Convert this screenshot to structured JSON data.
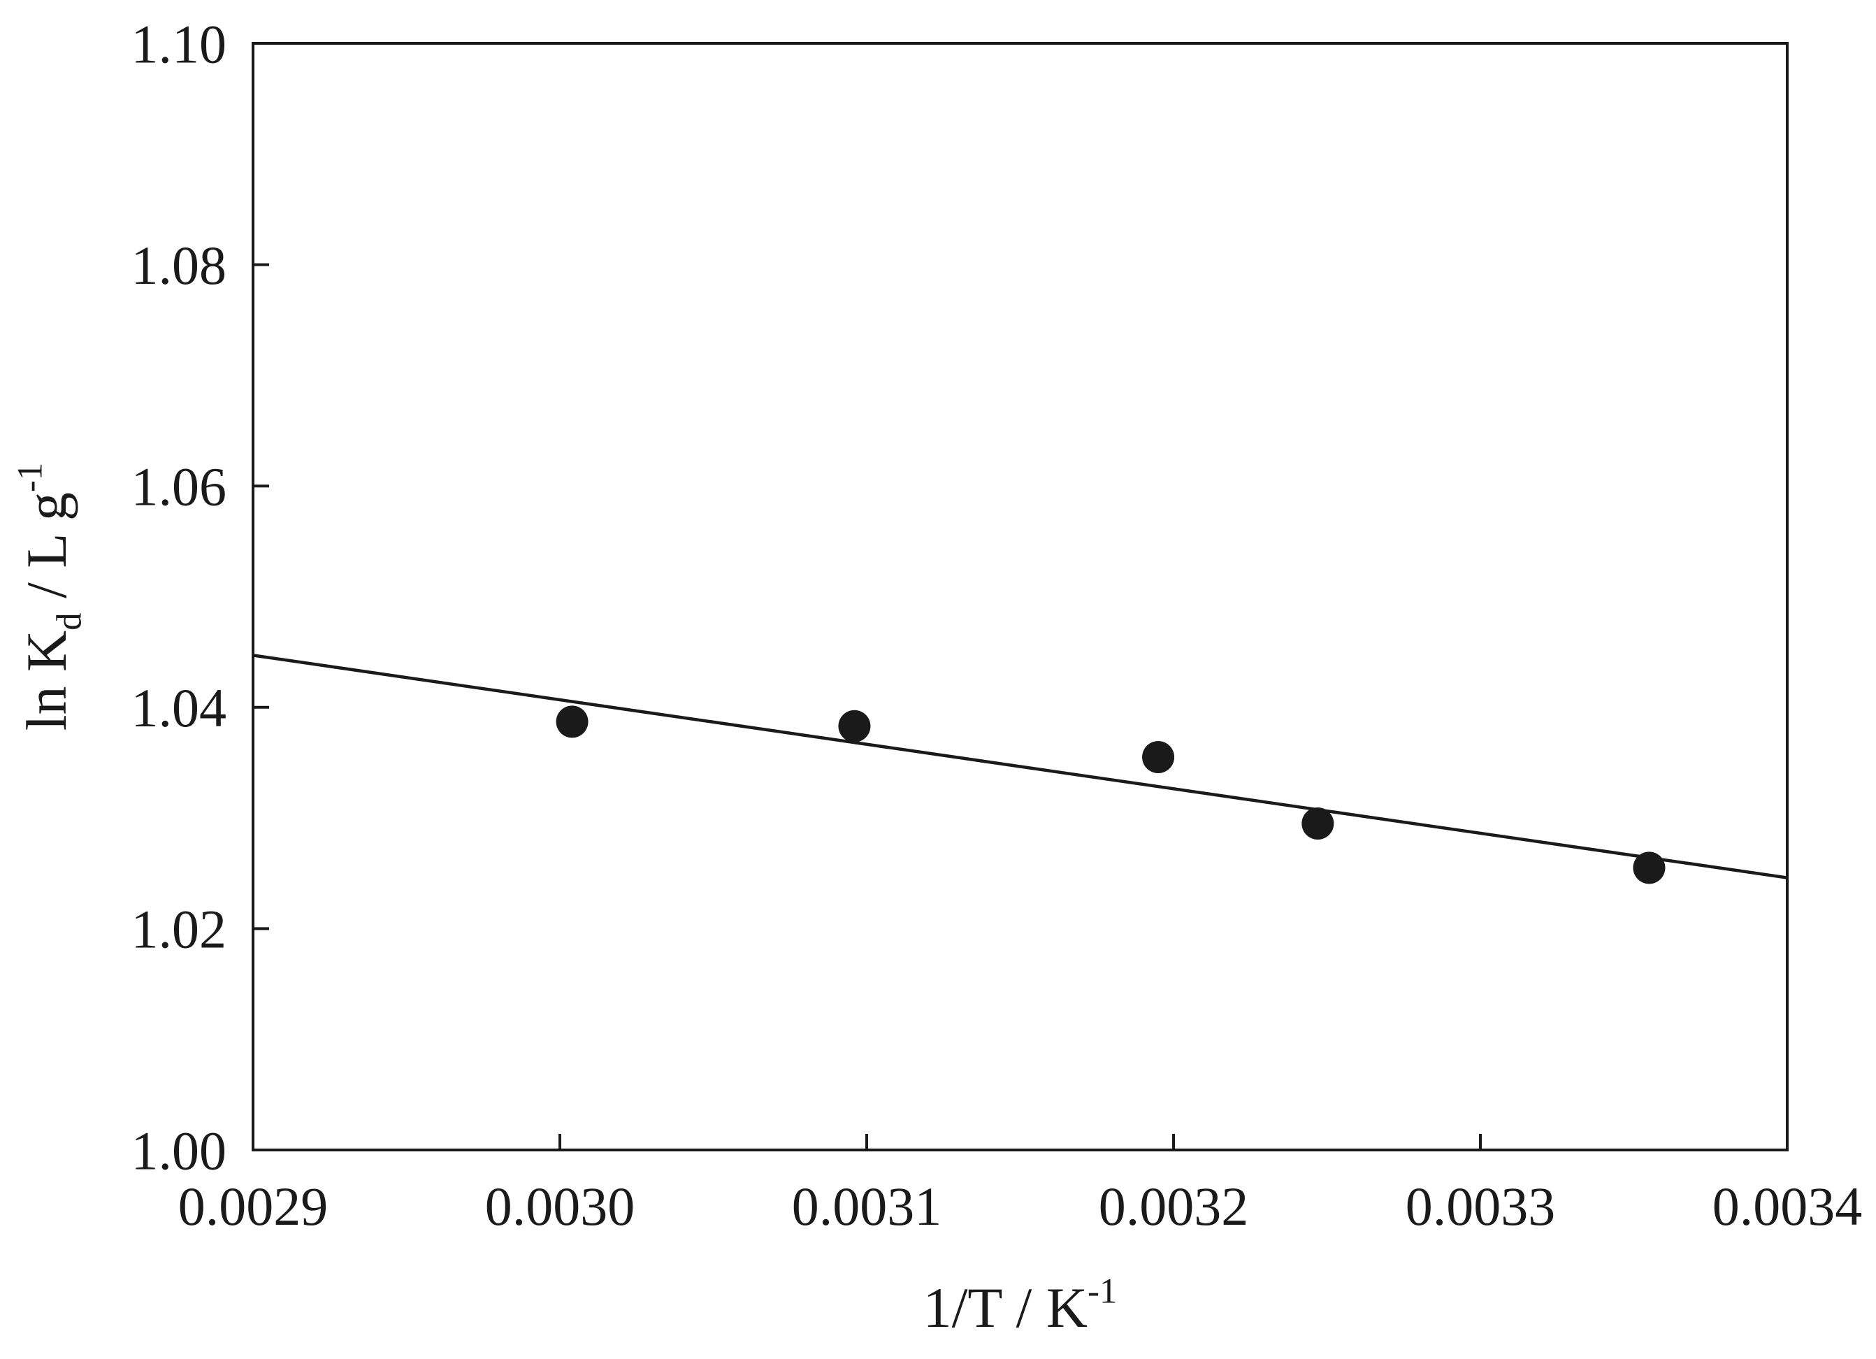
{
  "figure": {
    "background_color": "#ffffff",
    "ink_color": "#1a1a1a"
  },
  "chart_data": {
    "type": "scatter",
    "title": "",
    "xlabel": "1/T / K⁻¹",
    "ylabel": "ln Kd / L g⁻¹",
    "xlabel_parts": [
      {
        "text": "1/T / K",
        "script": "none"
      },
      {
        "text": "-1",
        "script": "sup"
      }
    ],
    "ylabel_parts": [
      {
        "text": "ln K",
        "script": "none"
      },
      {
        "text": "d",
        "script": "sub"
      },
      {
        "text": " / L g",
        "script": "none"
      },
      {
        "text": "-1",
        "script": "sup"
      }
    ],
    "xlim": [
      0.0029,
      0.0034
    ],
    "ylim": [
      1.0,
      1.1
    ],
    "x_tick_values": [
      0.0029,
      0.003,
      0.0031,
      0.0032,
      0.0033,
      0.0034
    ],
    "x_tick_labels": [
      "0.0029",
      "0.0030",
      "0.0031",
      "0.0032",
      "0.0033",
      "0.0034"
    ],
    "y_tick_values": [
      1.0,
      1.02,
      1.04,
      1.06,
      1.08,
      1.1
    ],
    "y_tick_labels": [
      "1.00",
      "1.02",
      "1.04",
      "1.06",
      "1.08",
      "1.10"
    ],
    "grid": false,
    "legend": null,
    "series": [
      {
        "name": "experimental ln Kd points",
        "type": "scatter",
        "marker": "filled-circle",
        "color": "#1a1a1a",
        "points": [
          {
            "x": 0.003004,
            "y": 1.0387
          },
          {
            "x": 0.003096,
            "y": 1.0383
          },
          {
            "x": 0.003195,
            "y": 1.0355
          },
          {
            "x": 0.003247,
            "y": 1.0295
          },
          {
            "x": 0.003355,
            "y": 1.0255
          }
        ]
      },
      {
        "name": "linear fit line",
        "type": "line",
        "color": "#1a1a1a",
        "points": [
          {
            "x": 0.0029,
            "y": 1.0447
          },
          {
            "x": 0.0034,
            "y": 1.0246
          }
        ]
      }
    ]
  }
}
